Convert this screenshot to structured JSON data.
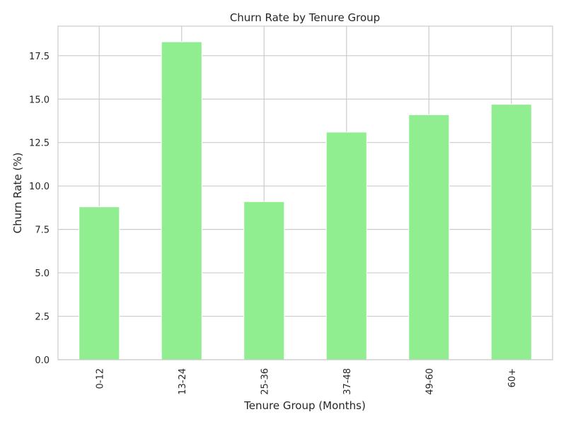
{
  "chart_data": {
    "type": "bar",
    "title": "Churn Rate by Tenure Group",
    "xlabel": "Tenure Group (Months)",
    "ylabel": "Churn Rate (%)",
    "categories": [
      "0-12",
      "13-24",
      "25-36",
      "37-48",
      "49-60",
      "60+"
    ],
    "values": [
      8.8,
      18.3,
      9.1,
      13.1,
      14.1,
      14.7
    ],
    "ylim": [
      0,
      19.2
    ],
    "yticks": [
      "0.0",
      "2.5",
      "5.0",
      "7.5",
      "10.0",
      "12.5",
      "15.0",
      "17.5"
    ],
    "grid": true,
    "bar_color": "#90ee90"
  }
}
